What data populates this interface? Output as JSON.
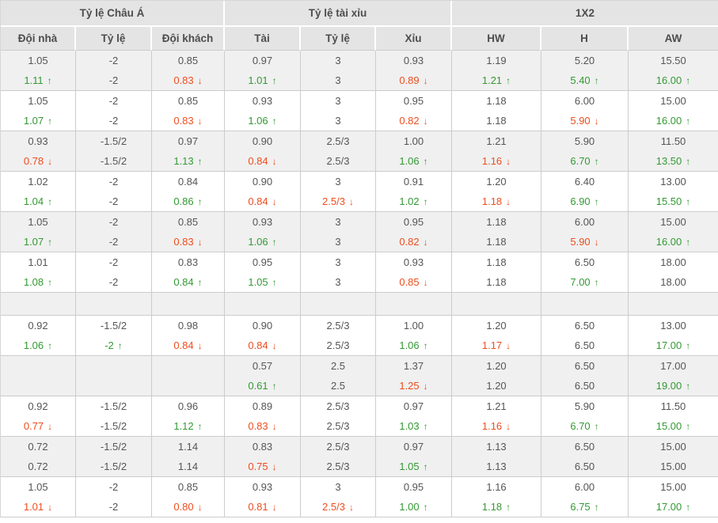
{
  "table": {
    "title": "odds-comparison-table",
    "colors": {
      "green": "#339933",
      "red": "#ee4d1e",
      "header_bg": "#e4e4e4",
      "row_alt_bg": "#f0f0f0",
      "border": "#cccccc",
      "text": "#555555"
    },
    "header_groups": [
      {
        "label": "Tỷ lệ Châu Á",
        "span": 3
      },
      {
        "label": "Tỷ lệ tài xỉu",
        "span": 3
      },
      {
        "label": "1X2",
        "span": 3
      }
    ],
    "columns": [
      "Đội nhà",
      "Tỷ lệ",
      "Đội khách",
      "Tài",
      "Tỷ lệ",
      "Xỉu",
      "HW",
      "H",
      "AW"
    ],
    "rows": [
      {
        "shaded": true,
        "empty": false,
        "cells": [
          [
            "1.05",
            "",
            "1.11",
            "up"
          ],
          [
            "-2",
            "",
            "-2",
            ""
          ],
          [
            "0.85",
            "",
            "0.83",
            "down"
          ],
          [
            "0.97",
            "",
            "1.01",
            "up"
          ],
          [
            "3",
            "",
            "3",
            ""
          ],
          [
            "0.93",
            "",
            "0.89",
            "down"
          ],
          [
            "1.19",
            "",
            "1.21",
            "up"
          ],
          [
            "5.20",
            "",
            "5.40",
            "up"
          ],
          [
            "15.50",
            "",
            "16.00",
            "up"
          ]
        ]
      },
      {
        "shaded": false,
        "empty": false,
        "cells": [
          [
            "1.05",
            "",
            "1.07",
            "up"
          ],
          [
            "-2",
            "",
            "-2",
            ""
          ],
          [
            "0.85",
            "",
            "0.83",
            "down"
          ],
          [
            "0.93",
            "",
            "1.06",
            "up"
          ],
          [
            "3",
            "",
            "3",
            ""
          ],
          [
            "0.95",
            "",
            "0.82",
            "down"
          ],
          [
            "1.18",
            "",
            "1.18",
            ""
          ],
          [
            "6.00",
            "",
            "5.90",
            "down"
          ],
          [
            "15.00",
            "",
            "16.00",
            "up"
          ]
        ]
      },
      {
        "shaded": true,
        "empty": false,
        "cells": [
          [
            "0.93",
            "",
            "0.78",
            "down"
          ],
          [
            "-1.5/2",
            "",
            "-1.5/2",
            ""
          ],
          [
            "0.97",
            "",
            "1.13",
            "up"
          ],
          [
            "0.90",
            "",
            "0.84",
            "down"
          ],
          [
            "2.5/3",
            "",
            "2.5/3",
            ""
          ],
          [
            "1.00",
            "",
            "1.06",
            "up"
          ],
          [
            "1.21",
            "",
            "1.16",
            "down"
          ],
          [
            "5.90",
            "",
            "6.70",
            "up"
          ],
          [
            "11.50",
            "",
            "13.50",
            "up"
          ]
        ]
      },
      {
        "shaded": false,
        "empty": false,
        "cells": [
          [
            "1.02",
            "",
            "1.04",
            "up"
          ],
          [
            "-2",
            "",
            "-2",
            ""
          ],
          [
            "0.84",
            "",
            "0.86",
            "up"
          ],
          [
            "0.90",
            "",
            "0.84",
            "down"
          ],
          [
            "3",
            "",
            "2.5/3",
            "down"
          ],
          [
            "0.91",
            "",
            "1.02",
            "up"
          ],
          [
            "1.20",
            "",
            "1.18",
            "down"
          ],
          [
            "6.40",
            "",
            "6.90",
            "up"
          ],
          [
            "13.00",
            "",
            "15.50",
            "up"
          ]
        ]
      },
      {
        "shaded": true,
        "empty": false,
        "cells": [
          [
            "1.05",
            "",
            "1.07",
            "up"
          ],
          [
            "-2",
            "",
            "-2",
            ""
          ],
          [
            "0.85",
            "",
            "0.83",
            "down"
          ],
          [
            "0.93",
            "",
            "1.06",
            "up"
          ],
          [
            "3",
            "",
            "3",
            ""
          ],
          [
            "0.95",
            "",
            "0.82",
            "down"
          ],
          [
            "1.18",
            "",
            "1.18",
            ""
          ],
          [
            "6.00",
            "",
            "5.90",
            "down"
          ],
          [
            "15.00",
            "",
            "16.00",
            "up"
          ]
        ]
      },
      {
        "shaded": false,
        "empty": false,
        "cells": [
          [
            "1.01",
            "",
            "1.08",
            "up"
          ],
          [
            "-2",
            "",
            "-2",
            ""
          ],
          [
            "0.83",
            "",
            "0.84",
            "up"
          ],
          [
            "0.95",
            "",
            "1.05",
            "up"
          ],
          [
            "3",
            "",
            "3",
            ""
          ],
          [
            "0.93",
            "",
            "0.85",
            "down"
          ],
          [
            "1.18",
            "",
            "1.18",
            ""
          ],
          [
            "6.50",
            "",
            "7.00",
            "up"
          ],
          [
            "18.00",
            "",
            "18.00",
            ""
          ]
        ]
      },
      {
        "shaded": true,
        "empty": true,
        "cells": [
          [
            "",
            "",
            "",
            ""
          ],
          [
            "",
            "",
            "",
            ""
          ],
          [
            "",
            "",
            "",
            ""
          ],
          [
            "",
            "",
            "",
            ""
          ],
          [
            "",
            "",
            "",
            ""
          ],
          [
            "",
            "",
            "",
            ""
          ],
          [
            "",
            "",
            "",
            ""
          ],
          [
            "",
            "",
            "",
            ""
          ],
          [
            "",
            "",
            "",
            ""
          ]
        ]
      },
      {
        "shaded": false,
        "empty": false,
        "cells": [
          [
            "0.92",
            "",
            "1.06",
            "up"
          ],
          [
            "-1.5/2",
            "",
            "-2",
            "up"
          ],
          [
            "0.98",
            "",
            "0.84",
            "down"
          ],
          [
            "0.90",
            "",
            "0.84",
            "down"
          ],
          [
            "2.5/3",
            "",
            "2.5/3",
            ""
          ],
          [
            "1.00",
            "",
            "1.06",
            "up"
          ],
          [
            "1.20",
            "",
            "1.17",
            "down"
          ],
          [
            "6.50",
            "",
            "6.50",
            ""
          ],
          [
            "13.00",
            "",
            "17.00",
            "up"
          ]
        ]
      },
      {
        "shaded": true,
        "empty": false,
        "cells": [
          [
            "",
            "",
            "",
            ""
          ],
          [
            "",
            "",
            "",
            ""
          ],
          [
            "",
            "",
            "",
            ""
          ],
          [
            "0.57",
            "",
            "0.61",
            "up"
          ],
          [
            "2.5",
            "",
            "2.5",
            ""
          ],
          [
            "1.37",
            "",
            "1.25",
            "down"
          ],
          [
            "1.20",
            "",
            "1.20",
            ""
          ],
          [
            "6.50",
            "",
            "6.50",
            ""
          ],
          [
            "17.00",
            "",
            "19.00",
            "up"
          ]
        ]
      },
      {
        "shaded": false,
        "empty": false,
        "cells": [
          [
            "0.92",
            "",
            "0.77",
            "down"
          ],
          [
            "-1.5/2",
            "",
            "-1.5/2",
            ""
          ],
          [
            "0.96",
            "",
            "1.12",
            "up"
          ],
          [
            "0.89",
            "",
            "0.83",
            "down"
          ],
          [
            "2.5/3",
            "",
            "2.5/3",
            ""
          ],
          [
            "0.97",
            "",
            "1.03",
            "up"
          ],
          [
            "1.21",
            "",
            "1.16",
            "down"
          ],
          [
            "5.90",
            "",
            "6.70",
            "up"
          ],
          [
            "11.50",
            "",
            "15.00",
            "up"
          ]
        ]
      },
      {
        "shaded": true,
        "empty": false,
        "cells": [
          [
            "0.72",
            "",
            "0.72",
            ""
          ],
          [
            "-1.5/2",
            "",
            "-1.5/2",
            ""
          ],
          [
            "1.14",
            "",
            "1.14",
            ""
          ],
          [
            "0.83",
            "",
            "0.75",
            "down"
          ],
          [
            "2.5/3",
            "",
            "2.5/3",
            ""
          ],
          [
            "0.97",
            "",
            "1.05",
            "up"
          ],
          [
            "1.13",
            "",
            "1.13",
            ""
          ],
          [
            "6.50",
            "",
            "6.50",
            ""
          ],
          [
            "15.00",
            "",
            "15.00",
            ""
          ]
        ]
      },
      {
        "shaded": false,
        "empty": false,
        "cells": [
          [
            "1.05",
            "",
            "1.01",
            "down"
          ],
          [
            "-2",
            "",
            "-2",
            ""
          ],
          [
            "0.85",
            "",
            "0.80",
            "down"
          ],
          [
            "0.93",
            "",
            "0.81",
            "down"
          ],
          [
            "3",
            "",
            "2.5/3",
            "down"
          ],
          [
            "0.95",
            "",
            "1.00",
            "up"
          ],
          [
            "1.16",
            "",
            "1.18",
            "up"
          ],
          [
            "6.00",
            "",
            "6.75",
            "up"
          ],
          [
            "15.00",
            "",
            "17.00",
            "up"
          ]
        ]
      }
    ],
    "arrow_glyphs": {
      "up": "↑",
      "down": "↓"
    }
  }
}
